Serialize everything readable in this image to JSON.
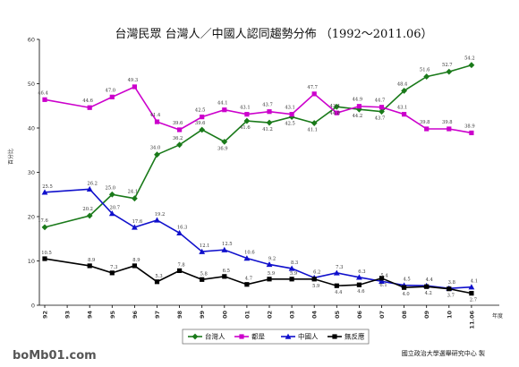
{
  "chart_data": {
    "type": "line",
    "title": "台灣民眾 台灣人／中國人認同趨勢分佈 （1992～2011.06）",
    "ylabel": "百分比",
    "xlabel": "年度",
    "ylim": [
      0,
      60
    ],
    "yticks": [
      0,
      10,
      20,
      30,
      40,
      50,
      60
    ],
    "grid": false,
    "legend_position": "bottom",
    "categories": [
      "92",
      "93",
      "94",
      "95",
      "96",
      "97",
      "98",
      "99",
      "00",
      "01",
      "02",
      "03",
      "04",
      "05",
      "06",
      "07",
      "08",
      "09",
      "10",
      "11.06"
    ],
    "series": [
      {
        "name": "台灣人",
        "color": "#1a7a1a",
        "marker": "diamond",
        "values": [
          17.6,
          null,
          20.2,
          25.0,
          24.1,
          34.0,
          36.2,
          39.6,
          36.9,
          41.6,
          41.2,
          42.5,
          41.1,
          44.8,
          44.2,
          43.7,
          48.4,
          51.6,
          52.7,
          54.2
        ]
      },
      {
        "name": "都是",
        "color": "#cc00cc",
        "marker": "square",
        "values": [
          46.4,
          null,
          44.6,
          47.0,
          49.3,
          41.4,
          39.6,
          42.5,
          44.1,
          43.1,
          43.7,
          43.1,
          47.7,
          43.4,
          44.9,
          44.7,
          43.1,
          39.8,
          39.8,
          38.9
        ]
      },
      {
        "name": "中國人",
        "color": "#1010cc",
        "marker": "triangle",
        "values": [
          25.5,
          null,
          26.2,
          20.7,
          17.6,
          19.2,
          16.3,
          12.1,
          12.5,
          10.6,
          9.2,
          8.3,
          6.2,
          7.3,
          6.3,
          5.4,
          4.5,
          4.4,
          3.8,
          4.1
        ]
      },
      {
        "name": "無反應",
        "color": "#000000",
        "marker": "square",
        "values": [
          10.5,
          null,
          8.9,
          7.3,
          8.9,
          5.3,
          7.8,
          5.8,
          6.5,
          4.7,
          5.9,
          5.9,
          5.9,
          4.4,
          4.6,
          6.1,
          4.0,
          4.2,
          3.7,
          2.7
        ]
      }
    ],
    "value_labels": [
      {
        "series": 0,
        "labels": [
          "17.6",
          null,
          "20.2",
          "25.0",
          "24.1",
          "34.0",
          "36.2",
          "39.6",
          "36.9",
          "41.6",
          "41.2",
          "42.5",
          "41.1",
          "44.8",
          "44.2",
          "43.7",
          "48.4",
          "51.6",
          "52.7",
          "54.2"
        ]
      },
      {
        "series": 1,
        "labels": [
          "46.4",
          null,
          "44.6",
          "47.0",
          "49.3",
          "41.4",
          "39.6",
          "42.5",
          "44.1",
          "43.1",
          "43.7",
          "43.1",
          "47.7",
          "43.4",
          "44.9",
          "44.7",
          "43.1",
          "39.8",
          "39.8",
          "38.9"
        ]
      },
      {
        "series": 2,
        "labels": [
          "25.5",
          null,
          "26.2",
          "20.7",
          "17.6",
          "19.2",
          "16.3",
          "12.1",
          "12.5",
          "10.6",
          "9.2",
          "8.3",
          "6.2",
          "7.3",
          "6.3",
          "5.4",
          "4.5",
          "4.4",
          "3.8",
          "4.1"
        ]
      },
      {
        "series": 3,
        "labels": [
          "10.5",
          null,
          "8.9",
          "7.3",
          "8.9",
          "5.3",
          "7.8",
          "5.8",
          "6.5",
          "4.7",
          "5.9",
          "5.9",
          "5.9",
          "4.4",
          "4.6",
          "6.1",
          "4.0",
          "4.2",
          "3.7",
          "2.7"
        ]
      }
    ]
  },
  "credit": "國立政治大學選舉研究中心 製",
  "watermark": "boMb01.com"
}
